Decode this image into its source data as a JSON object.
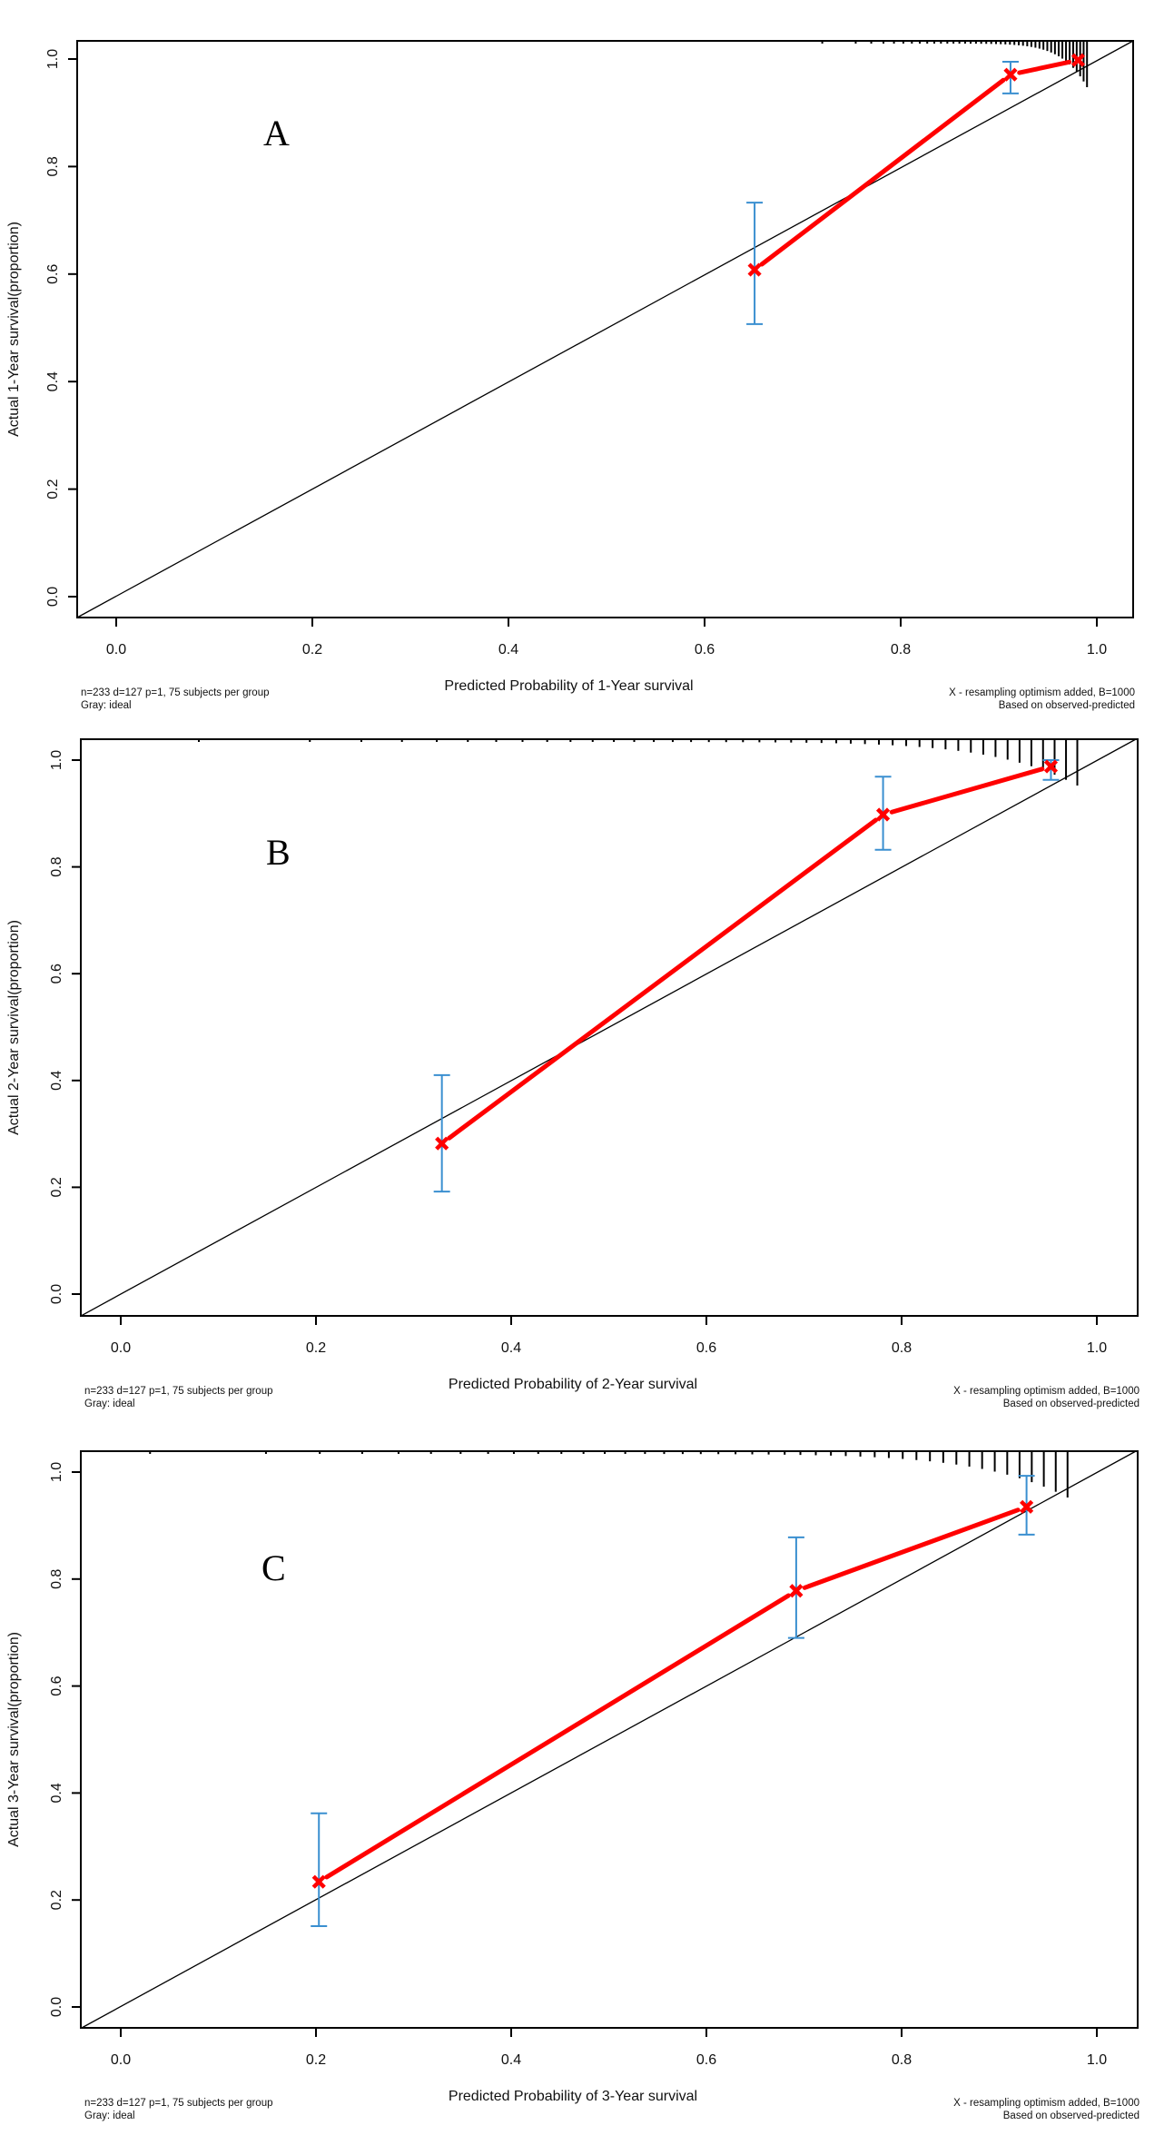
{
  "chart_data": [
    {
      "type": "line",
      "panel_label": "A",
      "title": "",
      "xlabel": "Predicted Probability of 1-Year survival",
      "ylabel": "Actual 1-Year survival(proportion)",
      "xlim": [
        -0.04,
        1.04
      ],
      "ylim": [
        -0.04,
        1.04
      ],
      "x_ticks": [
        "0.0",
        "0.2",
        "0.4",
        "0.6",
        "0.8",
        "1.0"
      ],
      "y_ticks": [
        "0.0",
        "0.2",
        "0.4",
        "0.6",
        "0.8",
        "1.0"
      ],
      "grid": false,
      "ideal_line": {
        "name": "Gray: ideal",
        "from": [
          -0.04,
          -0.04
        ],
        "to": [
          1.04,
          1.04
        ]
      },
      "series": [
        {
          "name": "resampling optimism added",
          "x": [
            0.651,
            0.912,
            0.981
          ],
          "y": [
            0.608,
            0.971,
            0.998
          ],
          "ci_lower": [
            0.507,
            0.936,
            null
          ],
          "ci_upper": [
            0.733,
            0.995,
            null
          ]
        }
      ],
      "rug": {
        "x_start": 0.72,
        "x_end": 0.99
      },
      "notes_left": [
        "n=233 d=127 p=1, 75 subjects per group",
        "Gray: ideal"
      ],
      "notes_right": [
        "X - resampling optimism added, B=1000",
        "Based on observed-predicted"
      ]
    },
    {
      "type": "line",
      "panel_label": "B",
      "title": "",
      "xlabel": "Predicted Probability of 2-Year survival",
      "ylabel": "Actual 2-Year survival(proportion)",
      "xlim": [
        -0.04,
        1.04
      ],
      "ylim": [
        -0.04,
        1.04
      ],
      "x_ticks": [
        "0.0",
        "0.2",
        "0.4",
        "0.6",
        "0.8",
        "1.0"
      ],
      "y_ticks": [
        "0.0",
        "0.2",
        "0.4",
        "0.6",
        "0.8",
        "1.0"
      ],
      "grid": false,
      "ideal_line": {
        "name": "Gray: ideal",
        "from": [
          -0.04,
          -0.04
        ],
        "to": [
          1.04,
          1.04
        ]
      },
      "series": [
        {
          "name": "resampling optimism added",
          "x": [
            0.329,
            0.781,
            0.953
          ],
          "y": [
            0.282,
            0.898,
            0.988
          ],
          "ci_lower": [
            0.192,
            0.832,
            0.963
          ],
          "ci_upper": [
            0.41,
            0.969,
            1.0
          ]
        }
      ],
      "rug": {
        "x_start": 0.08,
        "x_end": 0.98
      },
      "notes_left": [
        "n=233 d=127 p=1, 75 subjects per group",
        "Gray: ideal"
      ],
      "notes_right": [
        "X - resampling optimism added, B=1000",
        "Based on observed-predicted"
      ]
    },
    {
      "type": "line",
      "panel_label": "C",
      "title": "",
      "xlabel": "Predicted Probability of 3-Year survival",
      "ylabel": "Actual 3-Year survival(proportion)",
      "xlim": [
        -0.04,
        1.04
      ],
      "ylim": [
        -0.04,
        1.04
      ],
      "x_ticks": [
        "0.0",
        "0.2",
        "0.4",
        "0.6",
        "0.8",
        "1.0"
      ],
      "y_ticks": [
        "0.0",
        "0.2",
        "0.4",
        "0.6",
        "0.8",
        "1.0"
      ],
      "grid": false,
      "ideal_line": {
        "name": "Gray: ideal",
        "from": [
          -0.04,
          -0.04
        ],
        "to": [
          1.04,
          1.04
        ]
      },
      "series": [
        {
          "name": "resampling optimism added",
          "x": [
            0.203,
            0.692,
            0.928
          ],
          "y": [
            0.234,
            0.778,
            0.935
          ],
          "ci_lower": [
            0.151,
            0.69,
            0.883
          ],
          "ci_upper": [
            0.362,
            0.878,
            0.993
          ]
        }
      ],
      "rug": {
        "x_start": 0.03,
        "x_end": 0.97
      },
      "notes_left": [
        "n=233 d=127 p=1, 75 subjects per group",
        "Gray: ideal"
      ],
      "notes_right": [
        "X - resampling optimism added, B=1000",
        "Based on observed-predicted"
      ]
    }
  ],
  "colors": {
    "calibration_line": "#ff0000",
    "error_bar": "#3a8fd0",
    "ideal_line": "#000000",
    "frame": "#000000"
  }
}
